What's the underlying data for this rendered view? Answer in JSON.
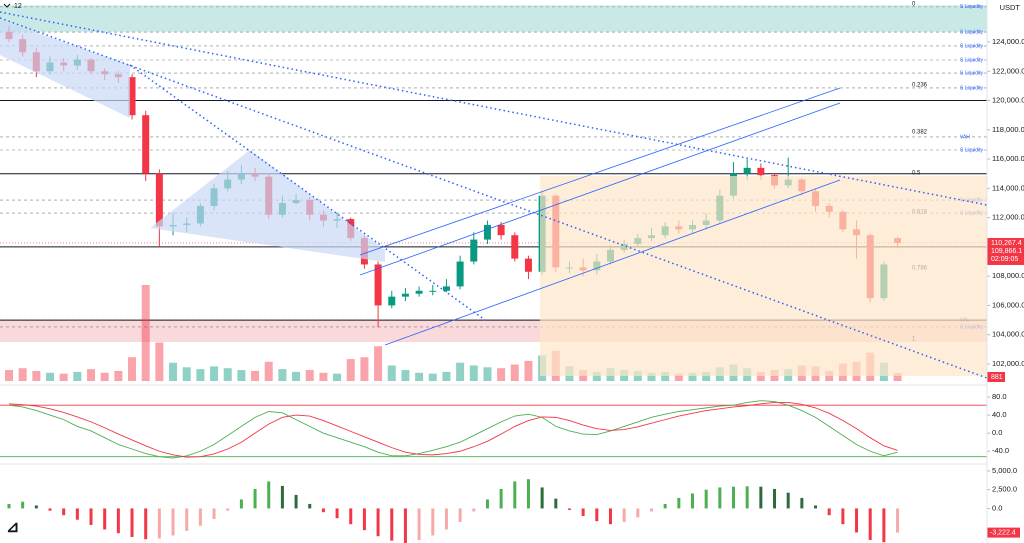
{
  "header": {
    "interval": "12",
    "currency": "USDT"
  },
  "chart_data": [
    {
      "type": "candlestick",
      "open": [
        124700,
        124200,
        123300,
        122000,
        122600,
        122400,
        122800,
        122000,
        121800,
        121600,
        119000,
        115000,
        111400,
        111500,
        111600,
        112800,
        114000,
        114600,
        115000,
        114800,
        112200,
        113000,
        113200,
        112200,
        111800,
        111900,
        110600,
        108800,
        106000,
        106600,
        106800,
        107000,
        107000,
        107300,
        109000,
        110500,
        111500,
        110800,
        109200,
        108300,
        113500,
        108600,
        108600,
        108400,
        109000,
        109800,
        110200,
        110600,
        110800,
        111400,
        111200,
        111500,
        111800,
        113500,
        115000,
        115400,
        114900,
        114200,
        114600,
        113800,
        112800,
        112400,
        111200,
        110800,
        106500,
        110600
      ],
      "high": [
        125100,
        124500,
        123600,
        123000,
        122900,
        123100,
        122900,
        122200,
        122000,
        121800,
        119300,
        115300,
        112300,
        112000,
        113000,
        114300,
        115200,
        115600,
        115400,
        115000,
        113500,
        113600,
        113400,
        112500,
        112300,
        112000,
        110800,
        109000,
        107000,
        107200,
        107300,
        107400,
        107800,
        109400,
        111000,
        111800,
        111700,
        111000,
        109400,
        113800,
        113600,
        109000,
        109200,
        109500,
        110100,
        110500,
        110900,
        111300,
        111700,
        111800,
        111800,
        112300,
        113900,
        115800,
        116000,
        115700,
        115000,
        116100,
        114700,
        114000,
        113000,
        112500,
        111800,
        110900,
        109000,
        110700
      ],
      "low": [
        124000,
        123000,
        121600,
        121800,
        122000,
        122100,
        121800,
        121400,
        121200,
        118700,
        114500,
        110000,
        110800,
        111000,
        111400,
        112500,
        113800,
        114300,
        114500,
        111900,
        112000,
        112900,
        111800,
        111400,
        111300,
        110400,
        108500,
        104500,
        105800,
        106300,
        106600,
        106700,
        106900,
        107100,
        108800,
        110200,
        110500,
        109000,
        107800,
        108100,
        108300,
        108200,
        108000,
        108100,
        108800,
        109600,
        110000,
        110400,
        110600,
        110900,
        110900,
        111200,
        111600,
        113300,
        114600,
        114600,
        114000,
        114000,
        113500,
        112400,
        112000,
        111000,
        109200,
        106200,
        106300,
        109900
      ],
      "close": [
        124200,
        123300,
        122000,
        122600,
        122400,
        122800,
        122000,
        121800,
        121600,
        119000,
        115000,
        111400,
        111500,
        111600,
        112800,
        114000,
        114600,
        115000,
        114800,
        112200,
        113000,
        113200,
        112200,
        111800,
        111900,
        110600,
        108800,
        106000,
        106600,
        106800,
        107000,
        107000,
        107300,
        109000,
        110500,
        111500,
        110800,
        109200,
        108300,
        113500,
        108600,
        108600,
        108400,
        109000,
        109800,
        110200,
        110600,
        110800,
        111400,
        111200,
        111500,
        111800,
        113500,
        115000,
        115400,
        114900,
        114200,
        114600,
        113800,
        112800,
        112400,
        111200,
        110800,
        106500,
        108800,
        110267.4
      ],
      "close_label": "110,267.4",
      "secondary_price": {
        "value": 109866.1,
        "label": "109,866.1"
      },
      "countdown": "02:09:05",
      "volume": [
        1200,
        1400,
        1100,
        900,
        800,
        1000,
        1300,
        900,
        1100,
        2600,
        10500,
        4200,
        2000,
        1500,
        1300,
        1600,
        1400,
        1200,
        1100,
        2100,
        1300,
        1000,
        1200,
        900,
        800,
        2400,
        2600,
        3800,
        1700,
        1200,
        900,
        800,
        1000,
        2000,
        1700,
        1500,
        1400,
        1800,
        2200,
        2800,
        3300,
        1600,
        1200,
        1000,
        1400,
        1200,
        1100,
        900,
        1000,
        800,
        900,
        1000,
        1500,
        1800,
        1400,
        1000,
        1200,
        1300,
        1700,
        1600,
        1100,
        1900,
        2100,
        3100,
        2000,
        881
      ],
      "up_color": "#089981",
      "down_color": "#f23645",
      "ylim": [
        100700,
        126870
      ],
      "yticks": [
        {
          "value": 102000,
          "label": "102,000.0"
        },
        {
          "value": 104000,
          "label": "104,000.0"
        },
        {
          "value": 106000,
          "label": "106,000.0"
        },
        {
          "value": 108000,
          "label": "108,000.0"
        },
        {
          "value": 110000,
          "label": "110,000.0"
        },
        {
          "value": 112000,
          "label": "112,000.0"
        },
        {
          "value": 114000,
          "label": "114,000.0"
        },
        {
          "value": 116000,
          "label": "116,000.0"
        },
        {
          "value": 118000,
          "label": "118,000.0"
        },
        {
          "value": 120000,
          "label": "120,000.0"
        },
        {
          "value": 122000,
          "label": "122,000.0"
        },
        {
          "value": 124000,
          "label": "124,000.0"
        }
      ],
      "key_levels": [
        120000,
        115000,
        110000,
        105000
      ],
      "fib_levels": [
        {
          "label": 0,
          "price": 126400
        },
        {
          "label": 0.236,
          "price": 120860
        },
        {
          "label": 0.382,
          "price": 117650
        },
        {
          "label": 0.5,
          "price": 114840
        },
        {
          "label": 0.618,
          "price": 112180
        },
        {
          "label": 0.786,
          "price": 108350
        },
        {
          "label": 1,
          "price": 103500
        }
      ],
      "annotations": [
        {
          "label": "S Liquidity",
          "price": 126400
        },
        {
          "label": "S Liquidity",
          "price": 124680
        },
        {
          "label": "S Liquidity",
          "price": 123730
        },
        {
          "label": "S Liquidity",
          "price": 122770
        },
        {
          "label": "S Liquidity",
          "price": 121880
        },
        {
          "label": "S Liquidity",
          "price": 120860
        },
        {
          "label": "VAH",
          "price": 117510
        },
        {
          "label": "S Liquidity",
          "price": 116620
        },
        {
          "label": "S Liquidity",
          "price": 113200
        },
        {
          "label": "S Liquidity",
          "price": 112310
        },
        {
          "label": "VAL",
          "price": 105000
        },
        {
          "label": "S Liquidity",
          "price": 104530
        }
      ],
      "zones": [
        {
          "from": 124700,
          "to": 126500,
          "color": "#b2dfdb"
        },
        {
          "from": 103500,
          "to": 105000,
          "color": "#f8c9cc"
        }
      ]
    },
    {
      "type": "line",
      "lines": [
        {
          "color": "#4caf50",
          "values": [
            62,
            58,
            50,
            40,
            30,
            15,
            5,
            -10,
            -25,
            -35,
            -45,
            -52,
            -55,
            -50,
            -40,
            -25,
            -5,
            15,
            35,
            48,
            45,
            30,
            15,
            0,
            -10,
            -20,
            -30,
            -42,
            -50,
            -50,
            -45,
            -38,
            -30,
            -20,
            -5,
            10,
            25,
            38,
            42,
            35,
            15,
            5,
            -2,
            -3,
            5,
            15,
            25,
            35,
            42,
            48,
            52,
            56,
            60,
            62,
            68,
            72,
            70,
            62,
            50,
            35,
            15,
            -5,
            -25,
            -40,
            -50,
            -42
          ]
        },
        {
          "color": "#f23645",
          "values": [
            65,
            63,
            60,
            54,
            46,
            36,
            25,
            12,
            -2,
            -15,
            -28,
            -40,
            -48,
            -53,
            -52,
            -46,
            -35,
            -20,
            0,
            20,
            35,
            40,
            38,
            28,
            16,
            4,
            -8,
            -20,
            -32,
            -42,
            -47,
            -48,
            -45,
            -40,
            -30,
            -18,
            -2,
            15,
            28,
            36,
            35,
            28,
            18,
            10,
            6,
            8,
            14,
            22,
            30,
            38,
            44,
            50,
            54,
            58,
            61,
            65,
            68,
            68,
            64,
            56,
            44,
            28,
            10,
            -10,
            -28,
            -38
          ]
        }
      ],
      "upper_level": 62,
      "lower_level": -52,
      "ylim": [
        -66,
        100
      ],
      "yticks": [
        {
          "value": 80,
          "label": "80.0"
        },
        {
          "value": 40,
          "label": "40.0"
        },
        {
          "value": 0,
          "label": "0.0"
        },
        {
          "value": -40,
          "label": "-40.0"
        }
      ]
    },
    {
      "type": "bar",
      "values": [
        600,
        900,
        400,
        -300,
        -900,
        -1500,
        -2200,
        -2800,
        -3300,
        -3800,
        -4100,
        -4000,
        -3600,
        -3000,
        -2300,
        -1400,
        -300,
        1200,
        2600,
        3600,
        3000,
        1800,
        600,
        -500,
        -1300,
        -2100,
        -2900,
        -3700,
        -4300,
        -4600,
        -4200,
        -3600,
        -2800,
        -1800,
        -400,
        1200,
        2600,
        3600,
        3900,
        2800,
        1300,
        -200,
        -1000,
        -1700,
        -2100,
        -1800,
        -1200,
        -400,
        600,
        1400,
        2000,
        2500,
        2800,
        2900,
        2950,
        2900,
        2600,
        2100,
        1400,
        400,
        -900,
        -2100,
        -3200,
        -4200,
        -4500,
        -3222.4
      ],
      "last_value_label": "-3,222.4",
      "colors": {
        "pos_up": "#4caf50",
        "pos_down": "#2e6b3a",
        "neg_down": "#f23645",
        "neg_up": "#f7a9a7"
      },
      "ylim": [
        -4340,
        5790
      ],
      "yticks": [
        {
          "value": 5000,
          "label": "5,000.0"
        },
        {
          "value": 2500,
          "label": "2,500.0"
        },
        {
          "value": 0,
          "label": "0.0"
        }
      ]
    }
  ]
}
